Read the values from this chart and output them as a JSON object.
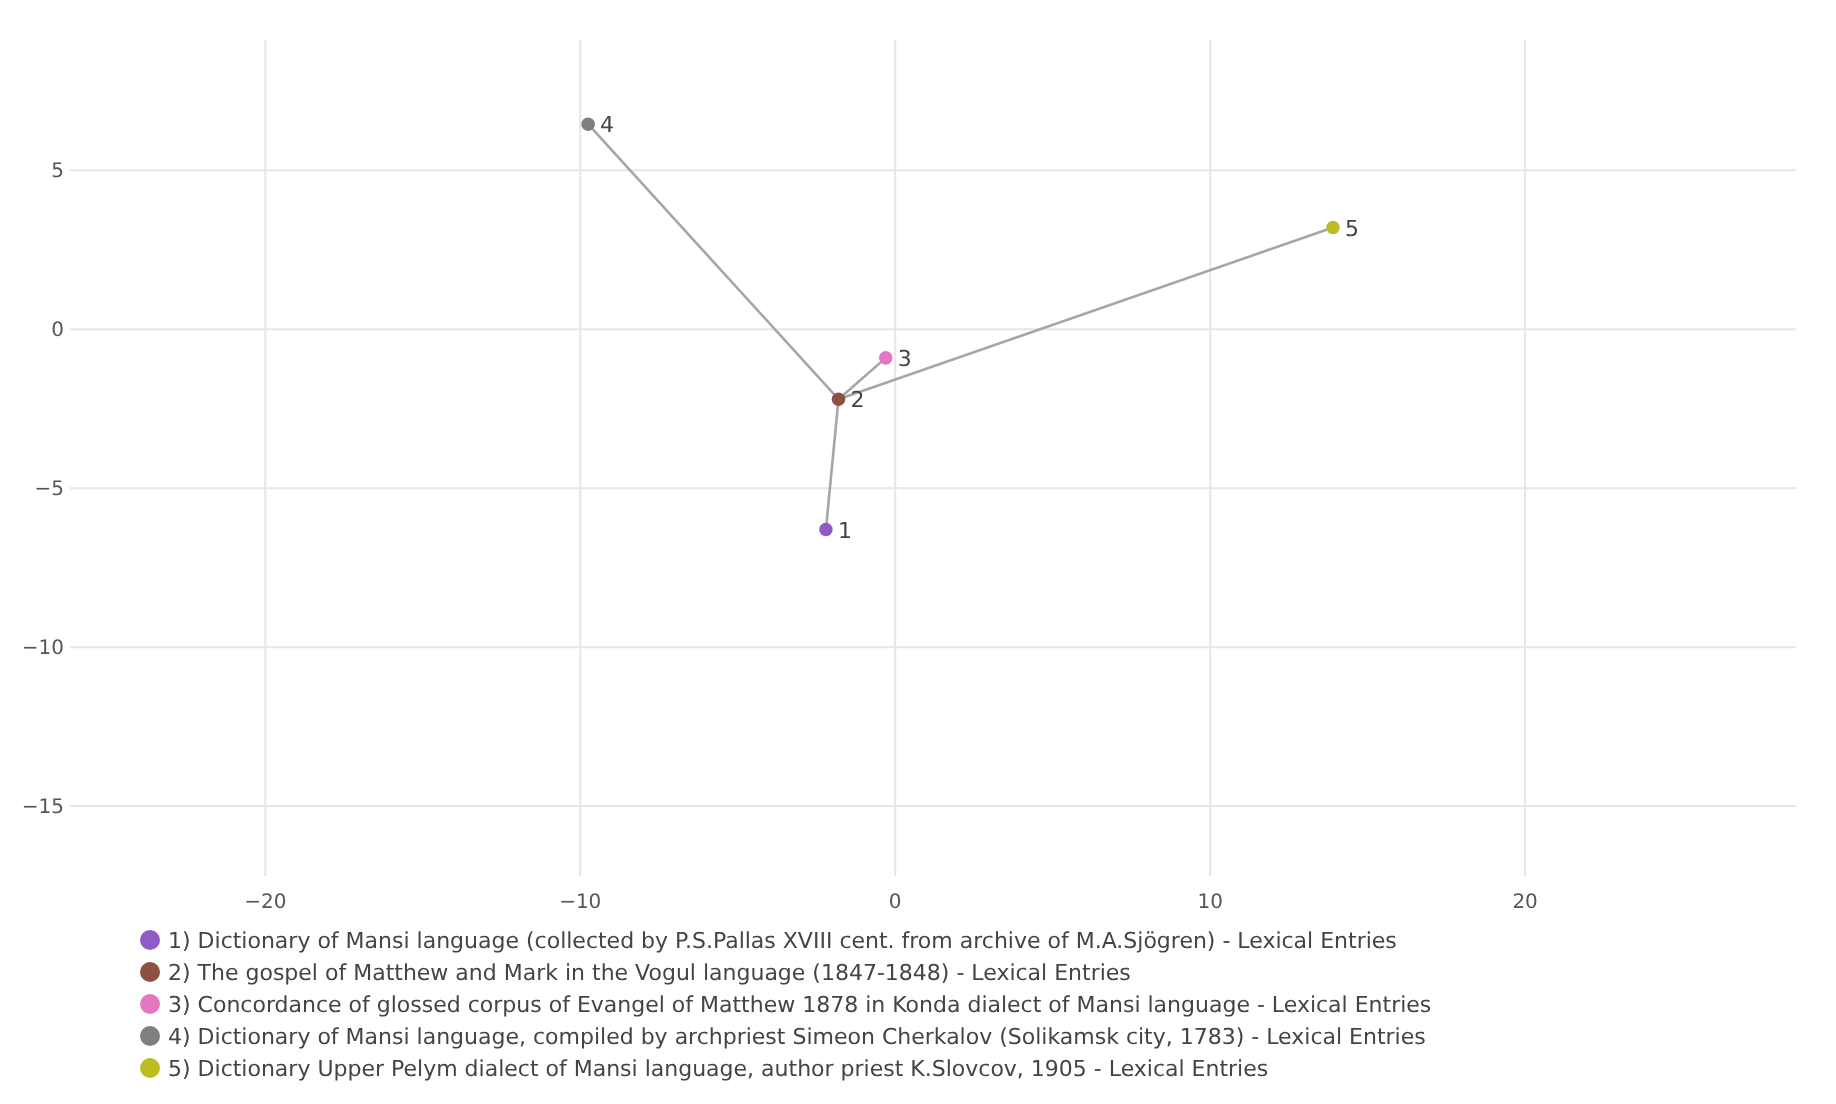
{
  "chart_data": {
    "type": "scatter",
    "xlim": [
      -26.2,
      28.6
    ],
    "ylim": [
      -17.2,
      9.1
    ],
    "xticks": [
      {
        "value": -20,
        "label": "−20"
      },
      {
        "value": -10,
        "label": "−10"
      },
      0,
      10,
      20
    ],
    "yticks": [
      {
        "value": -15,
        "label": "−15"
      },
      {
        "value": -10,
        "label": "−10"
      },
      {
        "value": -5,
        "label": "−5"
      },
      0,
      5
    ],
    "grid": true,
    "legend": "bottom",
    "marker": "circle",
    "series": [
      {
        "type": "line",
        "color": "#a6a6a6",
        "x": [
          -9.75,
          -1.8,
          -2.2,
          -1.8,
          -0.3,
          -1.8,
          13.9
        ],
        "values": [
          6.45,
          -2.2,
          -6.3,
          -2.2,
          -0.9,
          -2.2,
          3.2
        ],
        "marker": "none",
        "line_style": "solid"
      },
      {
        "name": "1) Dictionary of Mansi language (collected by P.S.Pallas XVIII cent. from archive of M.A.Sjögren) - Lexical Entries",
        "color": "#8e5cc4",
        "x": [
          -2.2
        ],
        "values": [
          -6.3
        ]
      },
      {
        "name": "2) The gospel of Matthew and Mark in the Vogul language (1847-1848) - Lexical Entries",
        "color": "#8c5142",
        "x": [
          -1.8
        ],
        "values": [
          -2.2
        ]
      },
      {
        "name": "3) Concordance of glossed corpus of Evangel of Matthew  1878 in Konda dialect of Mansi language - Lexical Entries",
        "color": "#e377c2",
        "x": [
          -0.3
        ],
        "values": [
          -0.9
        ]
      },
      {
        "name": "4) Dictionary of Mansi language, compiled by archpriest Simeon Cherkalov (Solikamsk city, 1783) - Lexical Entries",
        "color": "#7f7f7f",
        "x": [
          -9.75
        ],
        "values": [
          6.45
        ]
      },
      {
        "name": "5) Dictionary Upper Pelym dialect of Mansi language, author priest K.Slovcov,  1905 - Lexical Entries",
        "color": "#bcbd22",
        "x": [
          13.9
        ],
        "values": [
          3.2
        ]
      }
    ],
    "annotations": [
      {
        "text": "1",
        "x": -2.2,
        "y": -6.3
      },
      {
        "text": "2",
        "x": -1.8,
        "y": -2.2
      },
      {
        "text": "3",
        "x": -0.3,
        "y": -0.9
      },
      {
        "text": "4",
        "x": -9.75,
        "y": 6.45
      },
      {
        "text": "5",
        "x": 13.9,
        "y": 3.2
      }
    ]
  }
}
